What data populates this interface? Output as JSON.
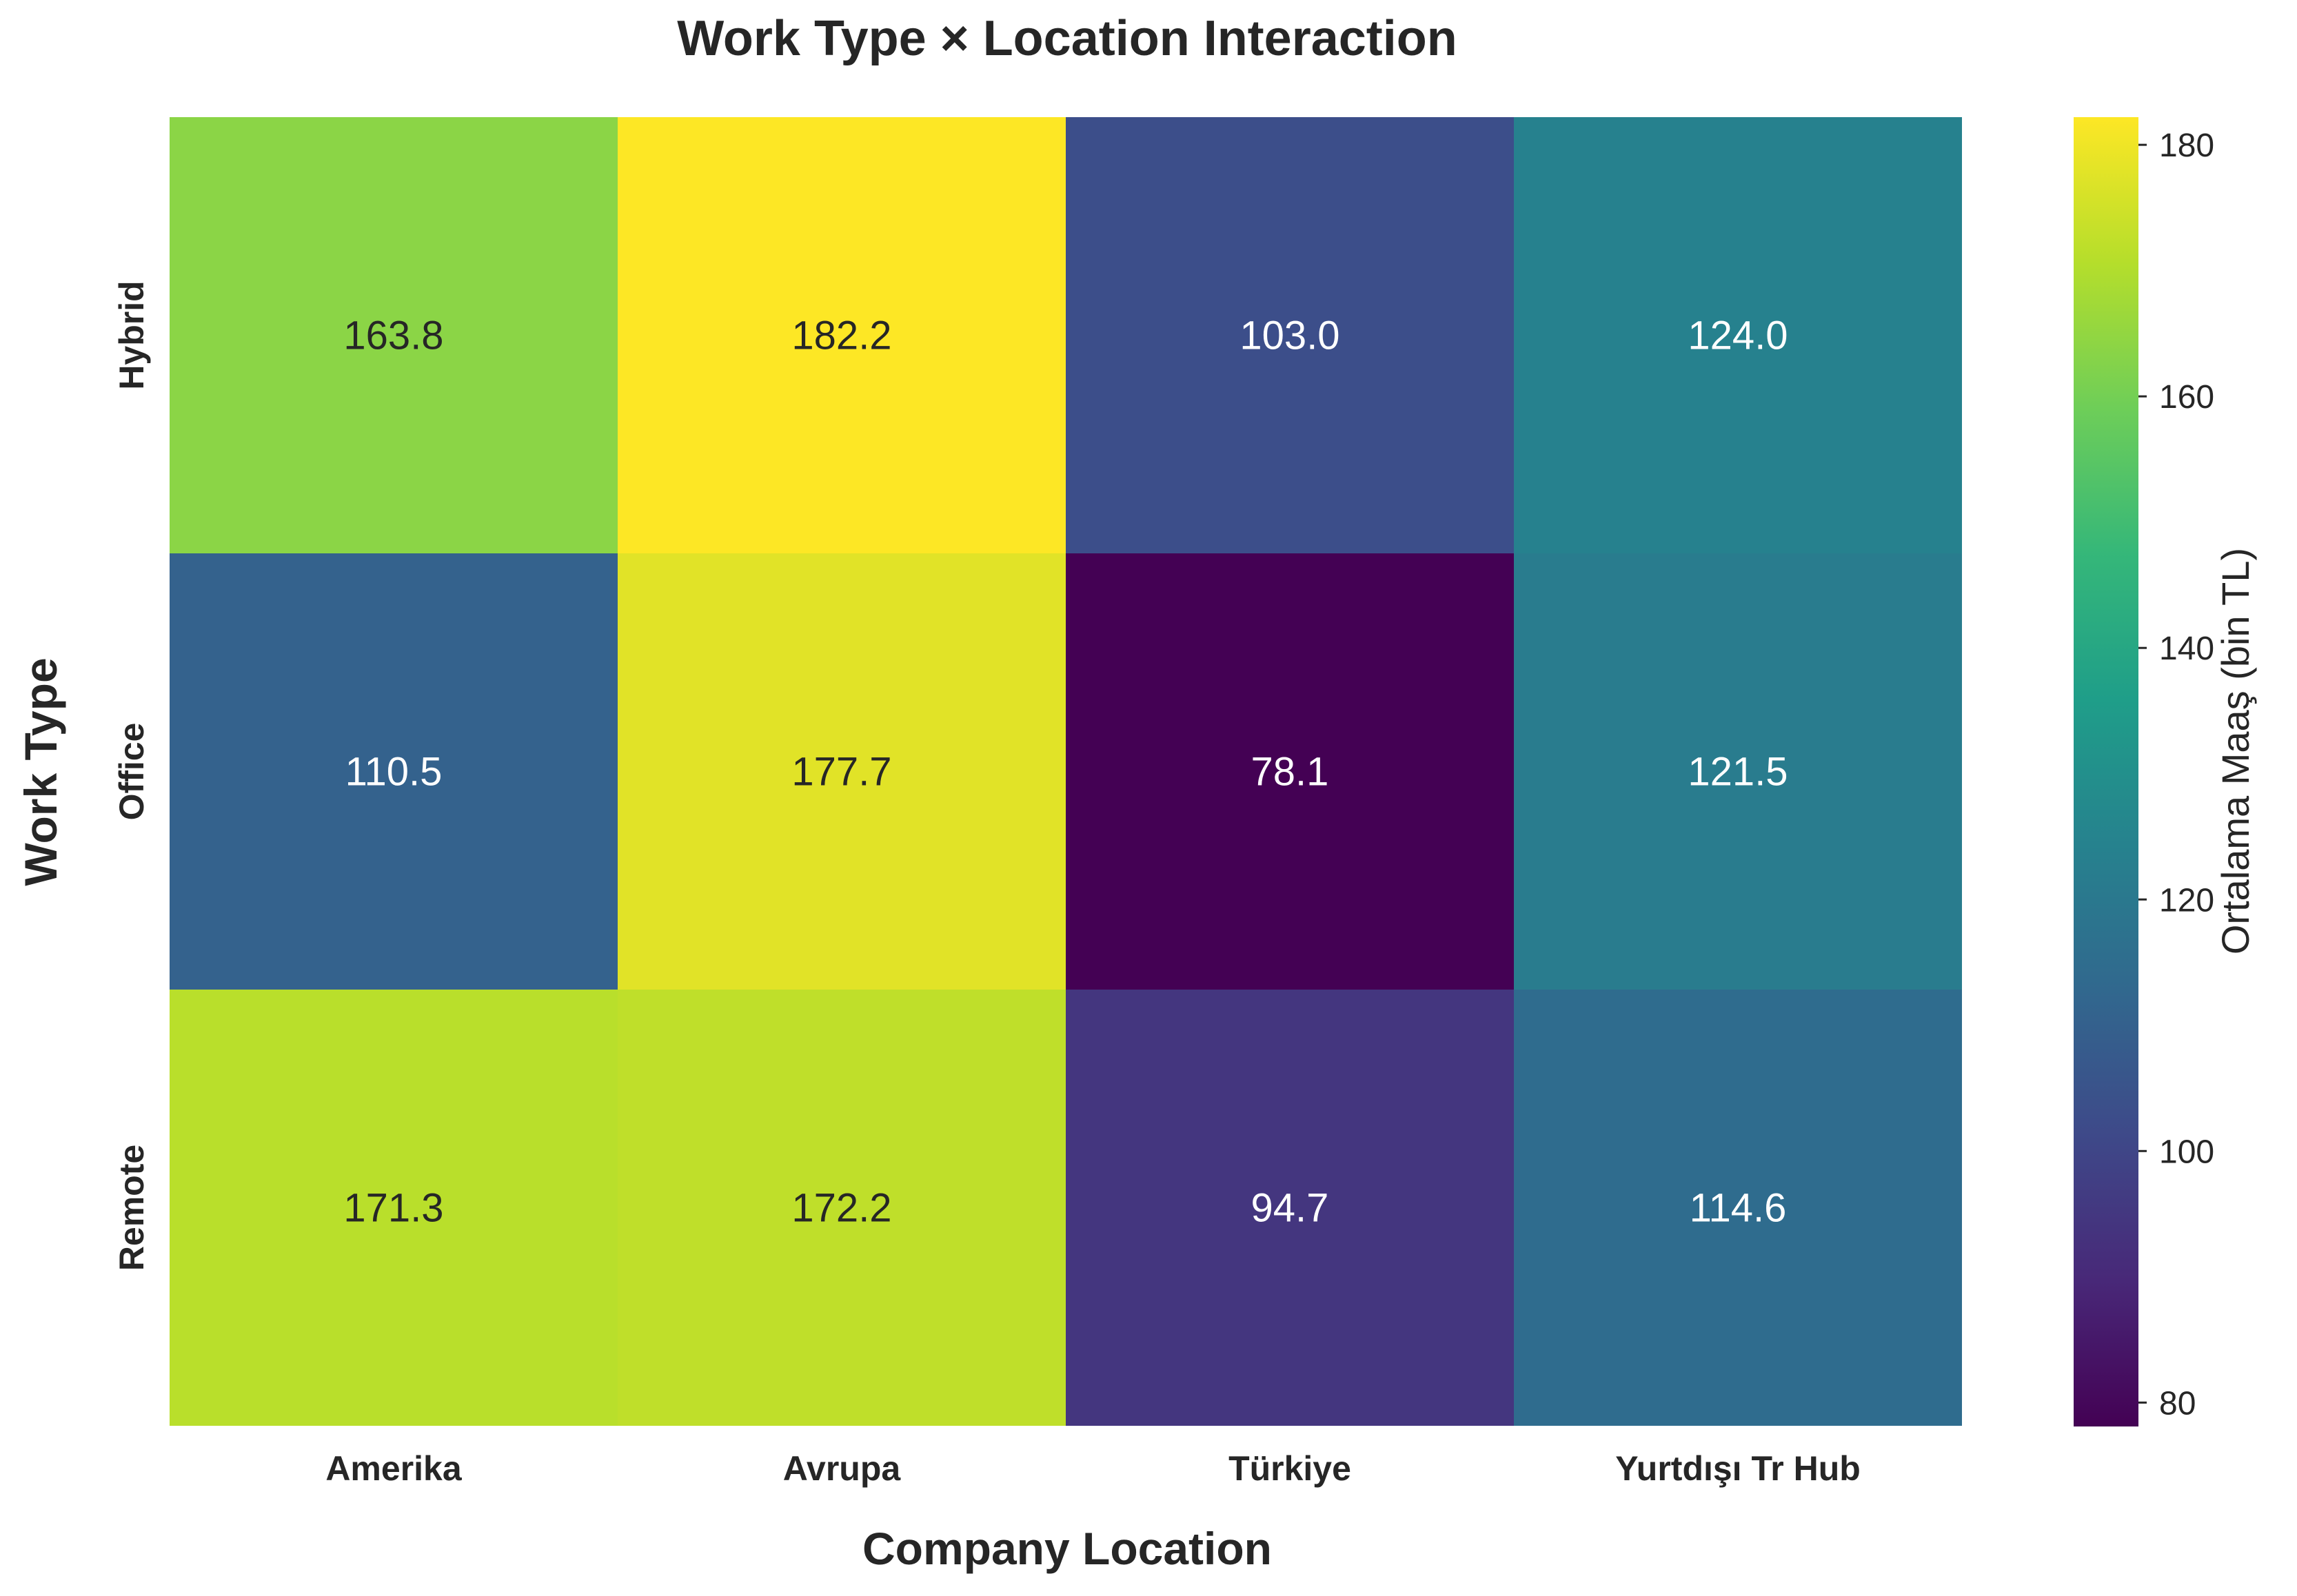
{
  "chart_data": {
    "type": "heatmap",
    "title": "Work Type × Location Interaction",
    "xlabel": "Company Location",
    "ylabel": "Work Type",
    "x_categories": [
      "Amerika",
      "Avrupa",
      "Türkiye",
      "Yurtdışı Tr Hub"
    ],
    "y_categories": [
      "Hybrid",
      "Office",
      "Remote"
    ],
    "values": [
      [
        163.8,
        182.2,
        103.0,
        124.0
      ],
      [
        110.5,
        177.7,
        78.1,
        121.5
      ],
      [
        171.3,
        172.2,
        94.7,
        114.6
      ]
    ],
    "value_format": "0.0",
    "colormap": "viridis",
    "colorbar": {
      "label": "Ortalama Maaş (bin TL)",
      "range": [
        78.1,
        182.2
      ],
      "ticks": [
        80,
        100,
        120,
        140,
        160,
        180
      ]
    },
    "grid": false,
    "legend_position": "right"
  }
}
